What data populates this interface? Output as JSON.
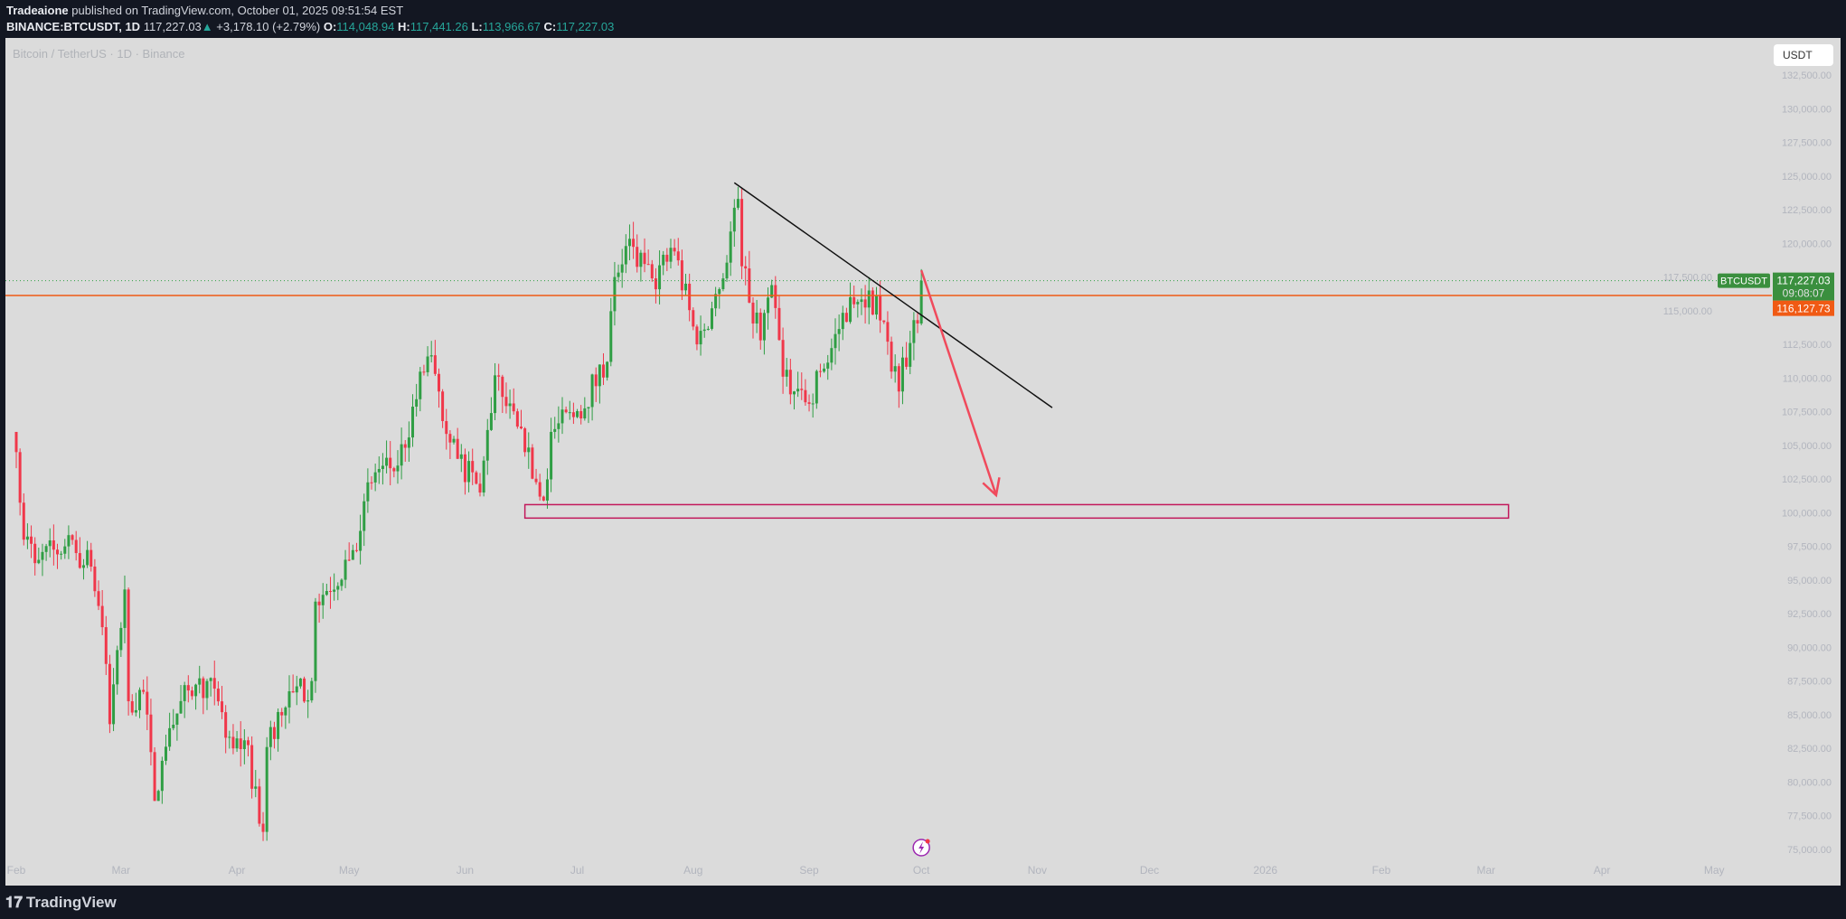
{
  "header": {
    "author": "Tradeaione",
    "published": "published on TradingView.com, October 01, 2025 09:51:54 EST",
    "symbol": "BINANCE:BTCUSDT, 1D",
    "last": "117,227.03",
    "change": "+3,178.10 (+2.79%)",
    "o_label": "O:",
    "o": "114,048.94",
    "h_label": "H:",
    "h": "117,441.26",
    "l_label": "L:",
    "l": "113,966.67",
    "c_label": "C:",
    "c": "117,227.03"
  },
  "chart": {
    "subtitle": "Bitcoin / TetherUS · 1D · Binance",
    "currency_button": "USDT",
    "symbol_label": "BTCUSDT",
    "price_label": "117,227.03",
    "countdown": "09:08:07",
    "line_label": "116,127.73",
    "colors": {
      "up": "#2f9e44",
      "down": "#f0374a",
      "line": "#f05a14",
      "label_green": "#3a8f3e",
      "zone": "#c2185b",
      "arrow": "#f04a5c",
      "trend": "#111111"
    }
  },
  "footer": {
    "logo": "TradingView"
  },
  "chart_data": {
    "type": "candlestick",
    "price_ticks": [
      "132,500.00",
      "130,000.00",
      "127,500.00",
      "125,000.00",
      "122,500.00",
      "120,000.00",
      "117,500.00",
      "115,000.00",
      "112,500.00",
      "110,000.00",
      "107,500.00",
      "105,000.00",
      "102,500.00",
      "100,000.00",
      "97,500.00",
      "95,000.00",
      "92,500.00",
      "90,000.00",
      "87,500.00",
      "85,000.00",
      "82,500.00",
      "80,000.00",
      "77,500.00",
      "75,000.00"
    ],
    "time_ticks": [
      [
        "2025-02-01",
        "Feb"
      ],
      [
        "2025-03-01",
        "Mar"
      ],
      [
        "2025-04-01",
        "Apr"
      ],
      [
        "2025-05-01",
        "May"
      ],
      [
        "2025-06-01",
        "Jun"
      ],
      [
        "2025-07-01",
        "Jul"
      ],
      [
        "2025-08-01",
        "Aug"
      ],
      [
        "2025-09-01",
        "Sep"
      ],
      [
        "2025-10-01",
        "Oct"
      ],
      [
        "2025-11-01",
        "Nov"
      ],
      [
        "2025-12-01",
        "Dec"
      ],
      [
        "2026-01-01",
        "2026"
      ],
      [
        "2026-02-01",
        "Feb"
      ],
      [
        "2026-03-01",
        "Mar"
      ],
      [
        "2026-04-01",
        "Apr"
      ],
      [
        "2026-05-01",
        "May"
      ]
    ],
    "ylim": [
      75000,
      132500
    ],
    "close_keypoints": [
      [
        "2025-02-01",
        104500
      ],
      [
        "2025-02-03",
        98000
      ],
      [
        "2025-02-07",
        96500
      ],
      [
        "2025-02-14",
        97500
      ],
      [
        "2025-02-21",
        96000
      ],
      [
        "2025-02-24",
        91500
      ],
      [
        "2025-02-26",
        84300
      ],
      [
        "2025-03-02",
        94300
      ],
      [
        "2025-03-03",
        86000
      ],
      [
        "2025-03-07",
        86700
      ],
      [
        "2025-03-10",
        78600
      ],
      [
        "2025-03-14",
        84000
      ],
      [
        "2025-03-19",
        86800
      ],
      [
        "2025-03-24",
        87500
      ],
      [
        "2025-03-31",
        82500
      ],
      [
        "2025-04-03",
        83100
      ],
      [
        "2025-04-08",
        76300
      ],
      [
        "2025-04-09",
        82600
      ],
      [
        "2025-04-12",
        85200
      ],
      [
        "2025-04-21",
        87500
      ],
      [
        "2025-04-22",
        93400
      ],
      [
        "2025-05-01",
        96500
      ],
      [
        "2025-05-08",
        103000
      ],
      [
        "2025-05-14",
        103500
      ],
      [
        "2025-05-22",
        111600
      ],
      [
        "2025-05-25",
        109000
      ],
      [
        "2025-05-30",
        104000
      ],
      [
        "2025-06-05",
        101500
      ],
      [
        "2025-06-09",
        110200
      ],
      [
        "2025-06-11",
        108600
      ],
      [
        "2025-06-17",
        104500
      ],
      [
        "2025-06-22",
        100900
      ],
      [
        "2025-06-24",
        106000
      ],
      [
        "2025-06-30",
        107100
      ],
      [
        "2025-07-09",
        111200
      ],
      [
        "2025-07-11",
        117500
      ],
      [
        "2025-07-14",
        119800
      ],
      [
        "2025-07-21",
        117400
      ],
      [
        "2025-07-27",
        119400
      ],
      [
        "2025-08-02",
        112500
      ],
      [
        "2025-08-08",
        116600
      ],
      [
        "2025-08-13",
        123300
      ],
      [
        "2025-08-14",
        118300
      ],
      [
        "2025-08-19",
        112800
      ],
      [
        "2025-08-22",
        116900
      ],
      [
        "2025-08-25",
        110100
      ],
      [
        "2025-08-31",
        108200
      ],
      [
        "2025-09-05",
        110700
      ],
      [
        "2025-09-12",
        116000
      ],
      [
        "2025-09-17",
        116500
      ],
      [
        "2025-09-22",
        112700
      ],
      [
        "2025-09-25",
        109000
      ],
      [
        "2025-09-29",
        114300
      ],
      [
        "2025-09-30",
        114049
      ],
      [
        "2025-10-01",
        117227
      ]
    ],
    "horizontal_line": 116127.73,
    "last_price": 117227.03,
    "trendline": [
      [
        "2025-08-12",
        124500
      ],
      [
        "2025-11-05",
        107800
      ]
    ],
    "arrow": [
      [
        "2025-10-01",
        118000
      ],
      [
        "2025-10-21",
        101300
      ]
    ],
    "zone": {
      "from": "2025-06-17",
      "to": "2026-03-07",
      "top": 100600,
      "bottom": 99600
    }
  }
}
